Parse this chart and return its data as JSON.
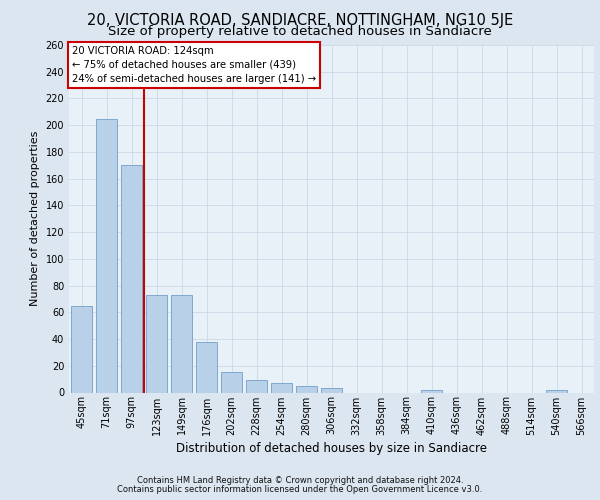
{
  "title": "20, VICTORIA ROAD, SANDIACRE, NOTTINGHAM, NG10 5JE",
  "subtitle": "Size of property relative to detached houses in Sandiacre",
  "xlabel": "Distribution of detached houses by size in Sandiacre",
  "ylabel": "Number of detached properties",
  "categories": [
    "45sqm",
    "71sqm",
    "97sqm",
    "123sqm",
    "149sqm",
    "176sqm",
    "202sqm",
    "228sqm",
    "254sqm",
    "280sqm",
    "306sqm",
    "332sqm",
    "358sqm",
    "384sqm",
    "410sqm",
    "436sqm",
    "462sqm",
    "488sqm",
    "514sqm",
    "540sqm",
    "566sqm"
  ],
  "values": [
    65,
    205,
    170,
    73,
    73,
    38,
    15,
    9,
    7,
    5,
    3,
    0,
    0,
    0,
    2,
    0,
    0,
    0,
    0,
    2,
    0
  ],
  "bar_color": "#b8d0e8",
  "bar_edge_color": "#6090c0",
  "highlight_line_color": "#cc0000",
  "annotation_title": "20 VICTORIA ROAD: 124sqm",
  "annotation_line1": "← 75% of detached houses are smaller (439)",
  "annotation_line2": "24% of semi-detached houses are larger (141) →",
  "annotation_box_edge": "#cc0000",
  "ylabel_fontsize": 8,
  "xlabel_fontsize": 8.5,
  "title_fontsize": 10.5,
  "subtitle_fontsize": 9.5,
  "tick_fontsize": 7,
  "footer_fontsize": 6,
  "footer_line1": "Contains HM Land Registry data © Crown copyright and database right 2024.",
  "footer_line2": "Contains public sector information licensed under the Open Government Licence v3.0.",
  "ylim": [
    0,
    260
  ],
  "yticks": [
    0,
    20,
    40,
    60,
    80,
    100,
    120,
    140,
    160,
    180,
    200,
    220,
    240,
    260
  ],
  "fig_bg_color": "#dce6f0",
  "plot_bg_color": "#e8f0f8"
}
